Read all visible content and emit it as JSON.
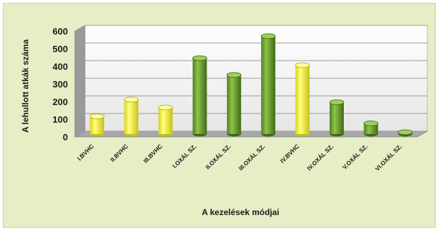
{
  "chart_data": {
    "type": "bar",
    "title": "",
    "xlabel": "A kezelések módjai",
    "ylabel": "A lehullott atkák száma",
    "ylim": [
      0,
      600
    ],
    "yticks": [
      0,
      100,
      200,
      300,
      400,
      500,
      600
    ],
    "grid": true,
    "categories": [
      "I.BVHC",
      "II.BVHC",
      "III.BVHC",
      "I.OXÁL SZ.",
      "II.OXÁL SZ.",
      "III.OXÁL SZ.",
      "IV.BVHC",
      "IV.OXÁL SZ.",
      "V.OXÁL SZ.",
      "VI.OXÁL SZ."
    ],
    "values": [
      100,
      195,
      150,
      430,
      335,
      555,
      390,
      180,
      60,
      10
    ],
    "colors": [
      "#ffff4a",
      "#ffff4a",
      "#ffff4a",
      "#6aa12e",
      "#6aa12e",
      "#6aa12e",
      "#ffff4a",
      "#6aa12e",
      "#6aa12e",
      "#6aa12e"
    ]
  }
}
